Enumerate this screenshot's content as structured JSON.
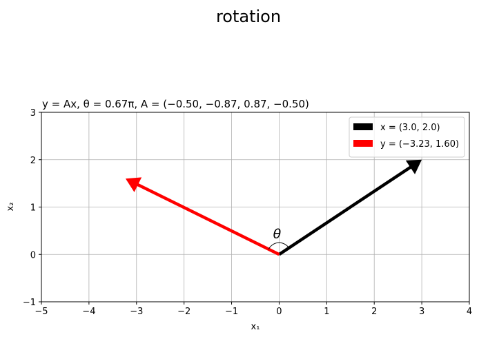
{
  "suptitle": "rotation",
  "axes_title": "y = Ax, θ = 0.67π, A = (−0.50, −0.87, 0.87, −0.50)",
  "theta_label": "θ",
  "chart_data": {
    "type": "line",
    "title": "rotation",
    "subtitle": "y = Ax, θ = 0.67π, A = (−0.50, −0.87, 0.87, −0.50)",
    "xlabel": "x₁",
    "ylabel": "x₂",
    "xlim": [
      -5,
      4
    ],
    "ylim": [
      -1,
      3
    ],
    "xticks": [
      -5,
      -4,
      -3,
      -2,
      -1,
      0,
      1,
      2,
      3,
      4
    ],
    "yticks": [
      -1,
      0,
      1,
      2,
      3
    ],
    "grid": true,
    "legend_position": "top-right",
    "series": [
      {
        "name": "x = (3.0, 2.0)",
        "color": "#000000",
        "start": [
          0,
          0
        ],
        "end": [
          3.0,
          2.0
        ]
      },
      {
        "name": "y = (−3.23, 1.60)",
        "color": "#ff0000",
        "start": [
          0,
          0
        ],
        "end": [
          -3.23,
          1.6
        ]
      }
    ],
    "annotation": {
      "type": "angle-arc",
      "label": "θ",
      "from": [
        3.0,
        2.0
      ],
      "to": [
        -3.23,
        1.6
      ]
    }
  }
}
